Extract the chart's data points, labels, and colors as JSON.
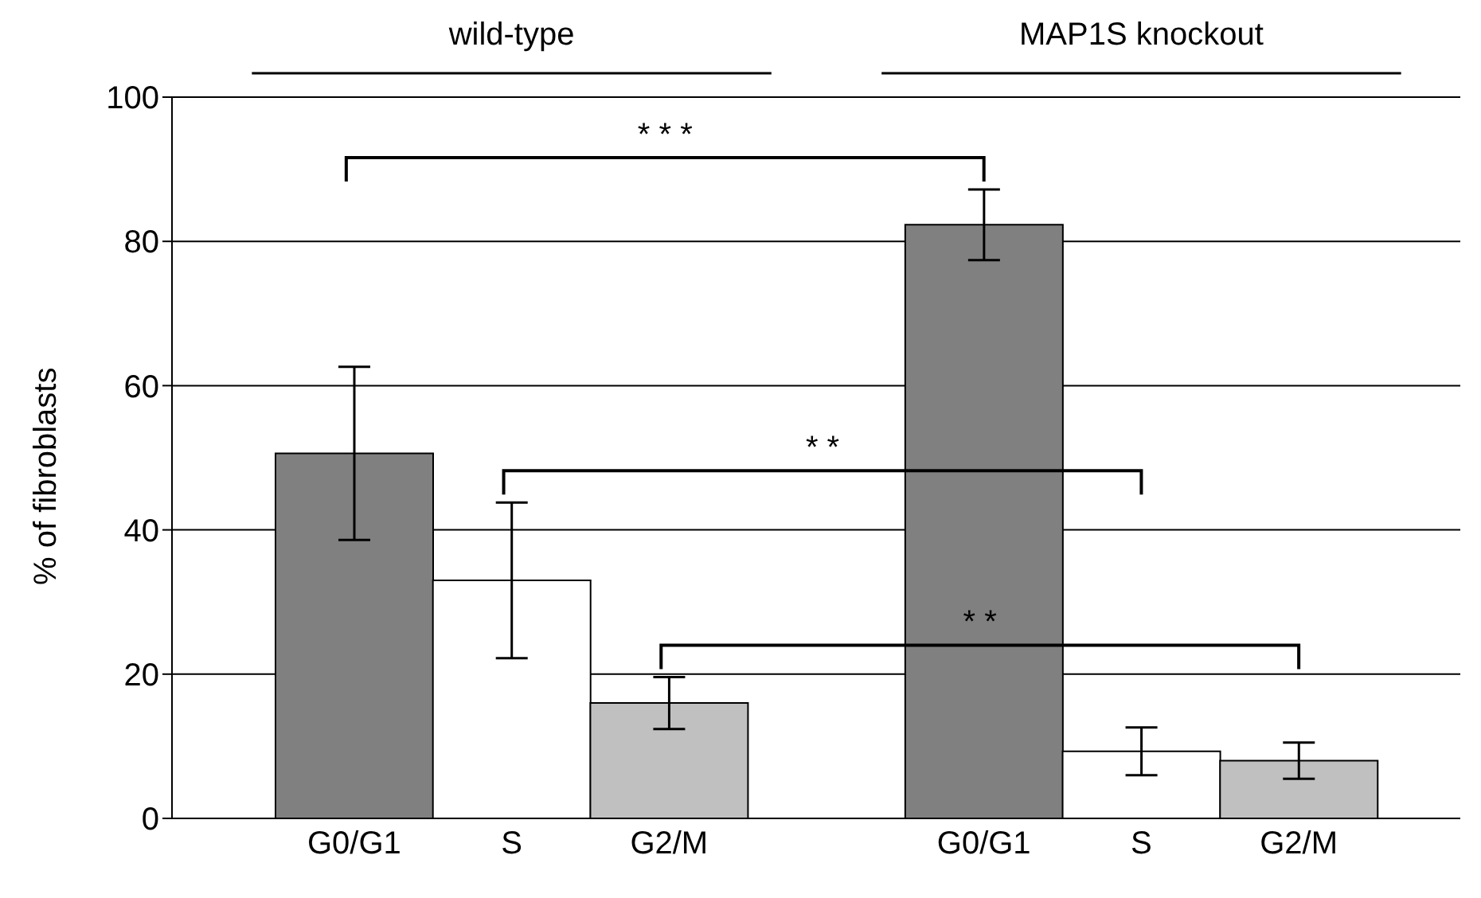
{
  "chart_data": {
    "type": "bar",
    "categories": [
      "G0/G1",
      "S",
      "G2/M",
      null,
      "G0/G1",
      "S",
      "G2/M"
    ],
    "values": [
      50.6,
      33.0,
      16.0,
      null,
      82.3,
      9.3,
      8.0
    ],
    "errors": [
      12.0,
      10.8,
      3.6,
      null,
      4.9,
      3.3,
      2.5
    ],
    "colors": [
      "#808080",
      "#ffffff",
      "#c0c0c0",
      "#ffffff",
      "#808080",
      "#ffffff",
      "#c0c0c0"
    ],
    "ylabel": "% of fibroblasts",
    "ylim": [
      0,
      100
    ],
    "yticks": [
      0,
      20,
      40,
      60,
      80,
      100
    ],
    "grid": "y",
    "annotations": [
      "wild-type",
      "MAP1S knockout",
      "* * *",
      "* *",
      "* *"
    ]
  }
}
